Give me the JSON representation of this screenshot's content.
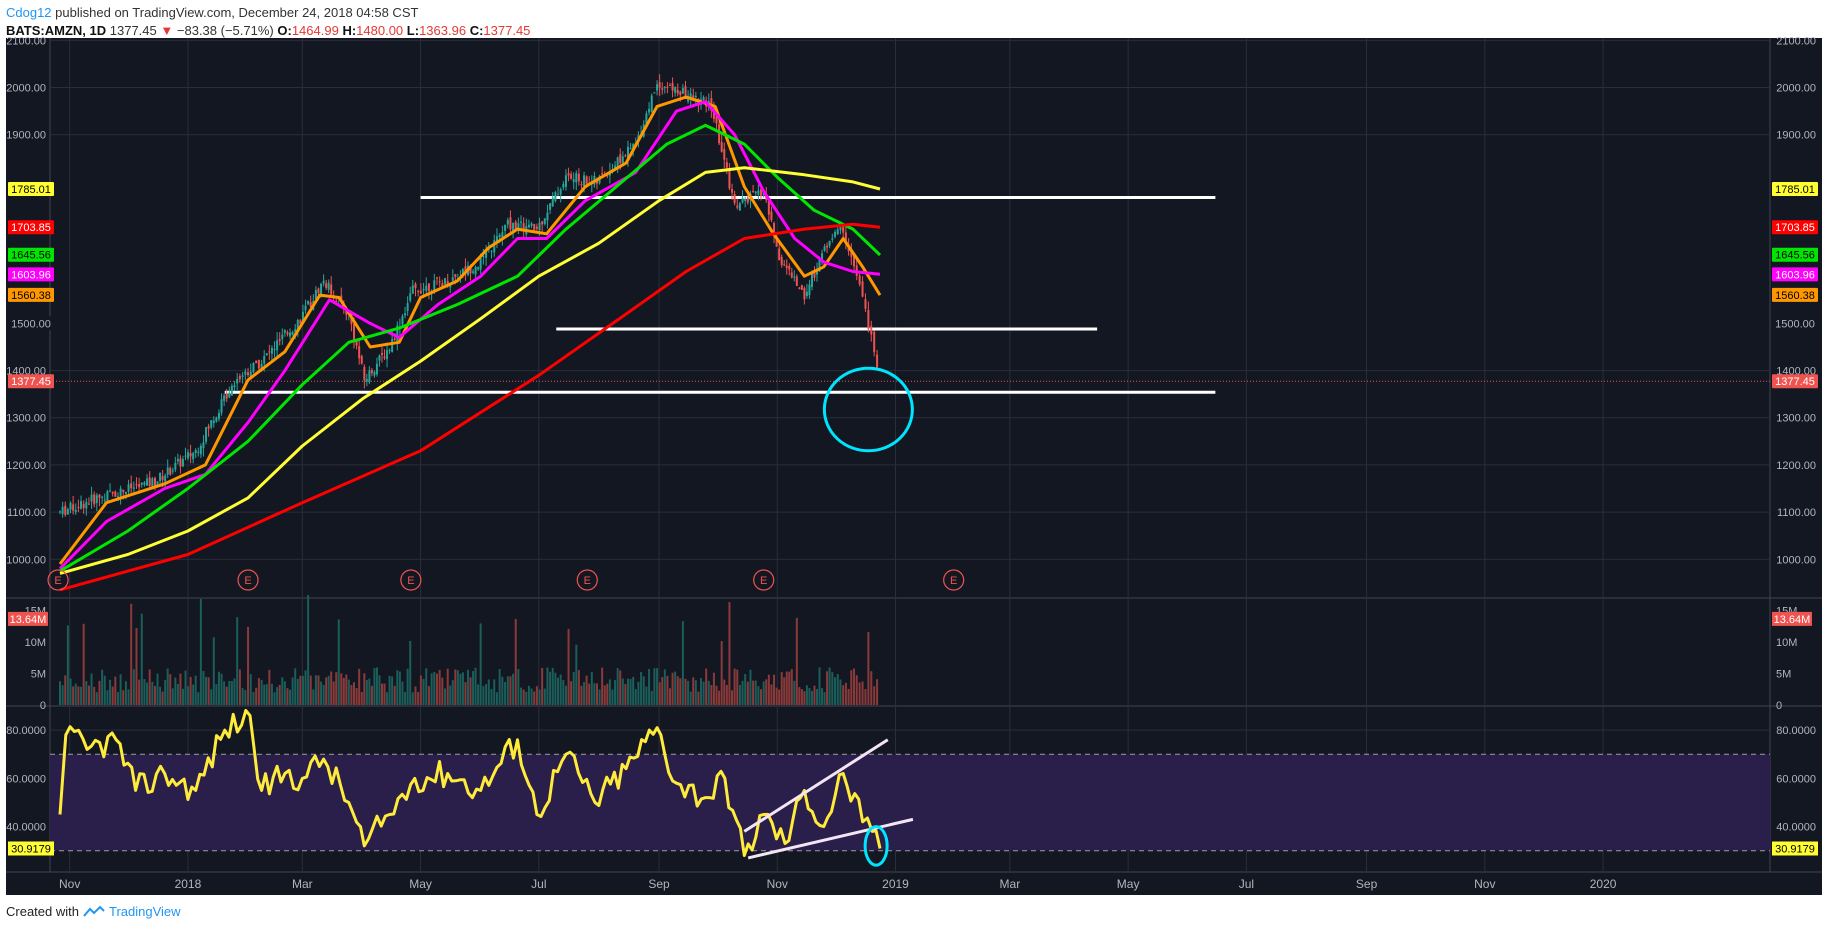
{
  "header": {
    "author": "Cdog12",
    "published": "published on TradingView.com, December 24, 2018 04:58 CST",
    "symbol": "BATS:AMZN, 1D",
    "last": "1377.45",
    "change": "−83.38 (−5.71%)",
    "o_label": "O:",
    "o_value": "1464.99",
    "h_label": "H:",
    "h_value": "1480.00",
    "l_label": "L:",
    "l_value": "1363.96",
    "c_label": "C:",
    "c_value": "1377.45"
  },
  "footer": {
    "created_with": "Created with",
    "brand": "TradingView"
  },
  "colors": {
    "background": "#131722",
    "grid": "#2a2e39",
    "axis_text": "#b2b5be",
    "up": "#26a69a",
    "down": "#ef5350",
    "ma_orange": "#ff9800",
    "ma_magenta": "#ff00ff",
    "ma_green": "#00e600",
    "ma_yellow": "#ffff33",
    "ma_red": "#ff0000",
    "rsi_line": "#ffeb3b",
    "rsi_band": "#2a1f4a",
    "annotation_circle": "#00e5ff",
    "trendline": "#ffffff"
  },
  "chart_data": {
    "type": "candlestick",
    "title": "BATS:AMZN, 1D",
    "x_ticks": [
      "Nov",
      "2018",
      "Mar",
      "May",
      "Jul",
      "Sep",
      "Nov",
      "2019",
      "Mar",
      "May",
      "Jul",
      "Sep",
      "Nov",
      "2020"
    ],
    "price_axis": {
      "ylim": [
        920,
        2105
      ],
      "ticks": [
        "2100.00",
        "2000.00",
        "1900.00",
        "1400.00",
        "1300.00",
        "1200.00",
        "1100.00",
        "1000.00"
      ]
    },
    "price_labels": [
      {
        "value": 1785.01,
        "text": "1785.01",
        "color": "#ffff33",
        "text_color": "#000000",
        "left_only": false
      },
      {
        "value": 1703.85,
        "text": "1703.85",
        "color": "#ff0000",
        "text_color": "#ffffff",
        "left_only": false
      },
      {
        "value": 1645.56,
        "text": "1645.56",
        "color": "#00e600",
        "text_color": "#000000",
        "left_only": false
      },
      {
        "value": 1603.96,
        "text": "1603.96",
        "color": "#ff00ff",
        "text_color": "#ffffff",
        "left_only": false
      },
      {
        "value": 1560.38,
        "text": "1560.38",
        "color": "#ff9800",
        "text_color": "#000000",
        "left_only": false
      },
      {
        "value": 1500.0,
        "text": "1500.00",
        "color": "#131722",
        "text_color": "#b2b5be",
        "left_only": false
      },
      {
        "value": 1377.45,
        "text": "1377.45",
        "color": "#ef5350",
        "text_color": "#ffffff",
        "left_only": false
      }
    ],
    "last_close": 1377.45,
    "candles_summary": {
      "start": "2017-10-27",
      "end": "2018-12-24",
      "open_first": 972,
      "high_max": 2050.5,
      "low_min": 1363.96,
      "close_last": 1377.45
    },
    "close_path": [
      [
        "2017-10-27",
        1100
      ],
      [
        "2017-11-15",
        1130
      ],
      [
        "2017-12-15",
        1165
      ],
      [
        "2018-01-05",
        1230
      ],
      [
        "2018-01-25",
        1380
      ],
      [
        "2018-02-08",
        1420
      ],
      [
        "2018-02-28",
        1510
      ],
      [
        "2018-03-12",
        1590
      ],
      [
        "2018-03-25",
        1520
      ],
      [
        "2018-04-02",
        1380
      ],
      [
        "2018-04-15",
        1450
      ],
      [
        "2018-04-27",
        1570
      ],
      [
        "2018-05-15",
        1590
      ],
      [
        "2018-06-01",
        1630
      ],
      [
        "2018-06-15",
        1710
      ],
      [
        "2018-06-30",
        1700
      ],
      [
        "2018-07-15",
        1810
      ],
      [
        "2018-07-31",
        1800
      ],
      [
        "2018-08-20",
        1880
      ],
      [
        "2018-08-31",
        2010
      ],
      [
        "2018-09-12",
        1990
      ],
      [
        "2018-09-28",
        1960
      ],
      [
        "2018-10-10",
        1750
      ],
      [
        "2018-10-25",
        1780
      ],
      [
        "2018-11-02",
        1640
      ],
      [
        "2018-11-15",
        1560
      ],
      [
        "2018-11-28",
        1680
      ],
      [
        "2018-12-05",
        1700
      ],
      [
        "2018-12-12",
        1600
      ],
      [
        "2018-12-18",
        1500
      ],
      [
        "2018-12-24",
        1377.45
      ]
    ],
    "moving_averages": [
      {
        "name": "MA-short (orange)",
        "color": "#ff9800",
        "last": 1560.38,
        "points": [
          [
            "2017-10-27",
            990
          ],
          [
            "2017-11-20",
            1120
          ],
          [
            "2017-12-20",
            1160
          ],
          [
            "2018-01-10",
            1200
          ],
          [
            "2018-02-01",
            1380
          ],
          [
            "2018-02-20",
            1440
          ],
          [
            "2018-03-10",
            1560
          ],
          [
            "2018-03-20",
            1555
          ],
          [
            "2018-04-05",
            1450
          ],
          [
            "2018-04-20",
            1460
          ],
          [
            "2018-05-01",
            1555
          ],
          [
            "2018-05-20",
            1590
          ],
          [
            "2018-06-05",
            1660
          ],
          [
            "2018-06-20",
            1700
          ],
          [
            "2018-07-05",
            1690
          ],
          [
            "2018-07-25",
            1790
          ],
          [
            "2018-08-15",
            1840
          ],
          [
            "2018-08-31",
            1960
          ],
          [
            "2018-09-15",
            1980
          ],
          [
            "2018-09-30",
            1960
          ],
          [
            "2018-10-15",
            1790
          ],
          [
            "2018-10-30",
            1690
          ],
          [
            "2018-11-15",
            1600
          ],
          [
            "2018-11-25",
            1620
          ],
          [
            "2018-12-05",
            1680
          ],
          [
            "2018-12-15",
            1620
          ],
          [
            "2018-12-24",
            1560
          ]
        ]
      },
      {
        "name": "MA (magenta)",
        "color": "#ff00ff",
        "last": 1603.96,
        "points": [
          [
            "2017-10-27",
            980
          ],
          [
            "2017-11-20",
            1080
          ],
          [
            "2017-12-20",
            1150
          ],
          [
            "2018-01-10",
            1180
          ],
          [
            "2018-02-01",
            1290
          ],
          [
            "2018-02-20",
            1400
          ],
          [
            "2018-03-15",
            1550
          ],
          [
            "2018-04-05",
            1500
          ],
          [
            "2018-04-20",
            1470
          ],
          [
            "2018-05-10",
            1540
          ],
          [
            "2018-06-01",
            1600
          ],
          [
            "2018-06-20",
            1680
          ],
          [
            "2018-07-05",
            1680
          ],
          [
            "2018-07-25",
            1760
          ],
          [
            "2018-08-20",
            1820
          ],
          [
            "2018-09-10",
            1950
          ],
          [
            "2018-09-25",
            1970
          ],
          [
            "2018-10-10",
            1900
          ],
          [
            "2018-10-25",
            1780
          ],
          [
            "2018-11-10",
            1680
          ],
          [
            "2018-11-25",
            1630
          ],
          [
            "2018-12-10",
            1610
          ],
          [
            "2018-12-24",
            1604
          ]
        ]
      },
      {
        "name": "MA (green)",
        "color": "#00e600",
        "last": 1645.56,
        "points": [
          [
            "2017-10-27",
            975
          ],
          [
            "2017-12-01",
            1060
          ],
          [
            "2018-01-01",
            1150
          ],
          [
            "2018-02-01",
            1250
          ],
          [
            "2018-03-01",
            1370
          ],
          [
            "2018-03-25",
            1460
          ],
          [
            "2018-04-20",
            1490
          ],
          [
            "2018-05-20",
            1540
          ],
          [
            "2018-06-20",
            1600
          ],
          [
            "2018-07-15",
            1700
          ],
          [
            "2018-08-10",
            1790
          ],
          [
            "2018-09-05",
            1880
          ],
          [
            "2018-09-25",
            1920
          ],
          [
            "2018-10-15",
            1880
          ],
          [
            "2018-11-01",
            1810
          ],
          [
            "2018-11-20",
            1740
          ],
          [
            "2018-12-10",
            1700
          ],
          [
            "2018-12-24",
            1645
          ]
        ]
      },
      {
        "name": "MA (yellow)",
        "color": "#ffff33",
        "last": 1785.01,
        "points": [
          [
            "2017-10-27",
            970
          ],
          [
            "2017-12-01",
            1010
          ],
          [
            "2018-01-01",
            1060
          ],
          [
            "2018-02-01",
            1130
          ],
          [
            "2018-03-01",
            1240
          ],
          [
            "2018-04-01",
            1340
          ],
          [
            "2018-05-01",
            1420
          ],
          [
            "2018-06-01",
            1510
          ],
          [
            "2018-07-01",
            1600
          ],
          [
            "2018-08-01",
            1670
          ],
          [
            "2018-09-01",
            1760
          ],
          [
            "2018-09-25",
            1820
          ],
          [
            "2018-10-15",
            1830
          ],
          [
            "2018-11-15",
            1815
          ],
          [
            "2018-12-10",
            1800
          ],
          [
            "2018-12-24",
            1785
          ]
        ]
      },
      {
        "name": "MA (red)",
        "color": "#ff0000",
        "last": 1703.85,
        "points": [
          [
            "2017-10-27",
            935
          ],
          [
            "2018-01-01",
            1010
          ],
          [
            "2018-03-01",
            1120
          ],
          [
            "2018-05-01",
            1230
          ],
          [
            "2018-07-01",
            1390
          ],
          [
            "2018-08-15",
            1520
          ],
          [
            "2018-09-15",
            1610
          ],
          [
            "2018-10-15",
            1680
          ],
          [
            "2018-11-15",
            1700
          ],
          [
            "2018-12-10",
            1710
          ],
          [
            "2018-12-24",
            1704
          ]
        ]
      }
    ],
    "horizontal_lines": [
      {
        "value": 1767,
        "from": "2018-05-01",
        "to": "2019-06-15"
      },
      {
        "value": 1488,
        "from": "2018-07-10",
        "to": "2019-04-15"
      },
      {
        "value": 1354,
        "from": "2018-01-20",
        "to": "2019-06-15"
      }
    ],
    "earnings_markers": {
      "label": "E",
      "dates": [
        "2017-10-26",
        "2018-02-01",
        "2018-04-26",
        "2018-07-26",
        "2018-10-25",
        "2019-01-31"
      ]
    },
    "volume": {
      "ylim": [
        0,
        16
      ],
      "unit": "M",
      "ticks": [
        "15M",
        "10M",
        "5M",
        "0"
      ],
      "last_label": "13.64M",
      "bars_summary": "daily volume mostly 2–6M with spikes to ~12–16M"
    },
    "rsi": {
      "ylim": [
        22,
        90
      ],
      "ticks": [
        "80.0000",
        "60.0000",
        "40.0000"
      ],
      "overbought": 70,
      "oversold": 30,
      "last_label": "30.9179",
      "points": [
        [
          "2017-10-27",
          45
        ],
        [
          "2017-10-30",
          78
        ],
        [
          "2017-11-10",
          72
        ],
        [
          "2017-11-25",
          76
        ],
        [
          "2017-12-05",
          55
        ],
        [
          "2017-12-20",
          62
        ],
        [
          "2018-01-05",
          55
        ],
        [
          "2018-01-20",
          80
        ],
        [
          "2018-02-02",
          86
        ],
        [
          "2018-02-08",
          55
        ],
        [
          "2018-02-20",
          62
        ],
        [
          "2018-03-01",
          60
        ],
        [
          "2018-03-12",
          68
        ],
        [
          "2018-03-25",
          50
        ],
        [
          "2018-04-02",
          32
        ],
        [
          "2018-04-15",
          45
        ],
        [
          "2018-04-28",
          60
        ],
        [
          "2018-05-15",
          62
        ],
        [
          "2018-06-01",
          55
        ],
        [
          "2018-06-20",
          76
        ],
        [
          "2018-06-30",
          45
        ],
        [
          "2018-07-15",
          70
        ],
        [
          "2018-07-30",
          50
        ],
        [
          "2018-08-15",
          64
        ],
        [
          "2018-08-31",
          81
        ],
        [
          "2018-09-10",
          58
        ],
        [
          "2018-09-25",
          52
        ],
        [
          "2018-10-05",
          60
        ],
        [
          "2018-10-15",
          28
        ],
        [
          "2018-10-25",
          45
        ],
        [
          "2018-11-05",
          33
        ],
        [
          "2018-11-15",
          55
        ],
        [
          "2018-11-25",
          40
        ],
        [
          "2018-12-05",
          62
        ],
        [
          "2018-12-15",
          42
        ],
        [
          "2018-12-20",
          38
        ],
        [
          "2018-12-24",
          30.9
        ]
      ],
      "trendlines": [
        {
          "from": [
            "2018-10-15",
            38
          ],
          "to": [
            "2018-12-28",
            76
          ]
        },
        {
          "from": [
            "2018-10-17",
            27
          ],
          "to": [
            "2019-01-10",
            43
          ]
        }
      ]
    },
    "annotations": [
      {
        "type": "circle",
        "pane": "price",
        "center_date": "2018-12-18",
        "value_range": [
          1230,
          1405
        ]
      },
      {
        "type": "circle",
        "pane": "rsi",
        "center_date": "2018-12-22",
        "value_range": [
          24,
          40
        ]
      }
    ]
  }
}
